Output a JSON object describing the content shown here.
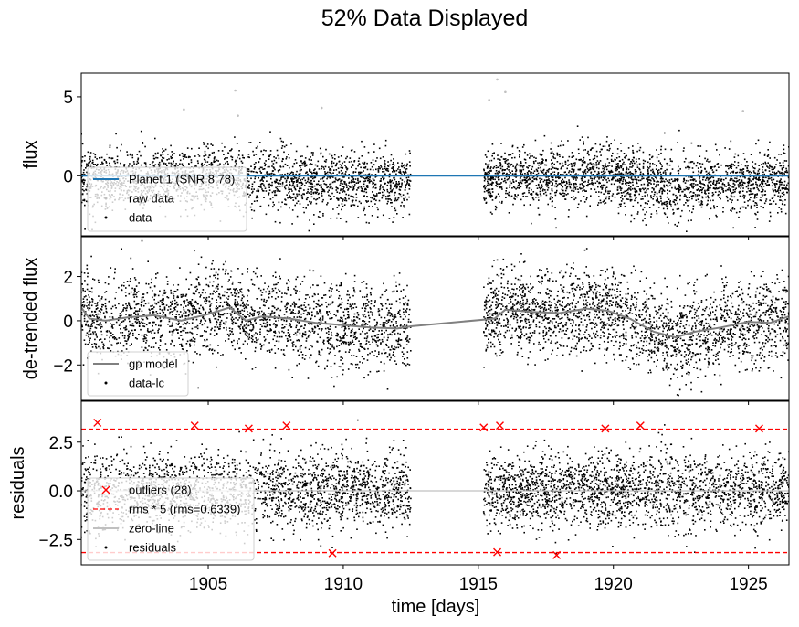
{
  "figure": {
    "title": "52% Data Displayed",
    "xlabel": "time [days]"
  },
  "chart_data": [
    {
      "type": "scatter",
      "ylabel": "flux",
      "xlim": [
        1900.3,
        1926.5
      ],
      "ylim": [
        -3.8,
        6.5
      ],
      "yticks": [
        0,
        5
      ],
      "show_xticklabels": false,
      "segments": [
        [
          1900.3,
          1912.5
        ],
        [
          1915.2,
          1926.5
        ]
      ],
      "series": [
        {
          "name": "Planet 1 (SNR 8.78)",
          "kind": "line",
          "color": "#1f77b4",
          "x": [
            1900.3,
            1926.5
          ],
          "y": [
            0,
            0
          ]
        },
        {
          "name": "raw data",
          "kind": "points",
          "color": "#c0c0c0",
          "x": [
            1904.1,
            1906.0,
            1906.1,
            1909.2,
            1915.4,
            1915.7,
            1916.0,
            1924.8
          ],
          "y": [
            4.2,
            5.4,
            3.8,
            4.3,
            4.8,
            6.1,
            5.3,
            4.1
          ]
        },
        {
          "name": "data",
          "kind": "points",
          "color": "#000000",
          "noise_sd": 0.95
        }
      ],
      "legend": {
        "loc": "lower left"
      }
    },
    {
      "type": "scatter",
      "ylabel": "de-trended flux",
      "xlim": [
        1900.3,
        1926.5
      ],
      "ylim": [
        -3.6,
        3.8
      ],
      "yticks": [
        -2,
        0,
        2
      ],
      "show_xticklabels": false,
      "series": [
        {
          "name": "gp model",
          "kind": "line",
          "color": "#808080",
          "x": [
            1900.3,
            1900.6,
            1901.2,
            1902.0,
            1903.0,
            1904.0,
            1905.0,
            1905.8,
            1906.4,
            1907.0,
            1908.0,
            1909.0,
            1910.0,
            1911.0,
            1912.0,
            1912.5,
            1915.2,
            1915.6,
            1916.0,
            1917.0,
            1918.0,
            1919.0,
            1919.8,
            1920.6,
            1921.5,
            1922.3,
            1923.0,
            1924.0,
            1925.0,
            1925.8,
            1926.5
          ],
          "y": [
            0.6,
            0.1,
            0.0,
            0.15,
            0.25,
            0.0,
            0.3,
            0.6,
            0.0,
            0.2,
            0.1,
            -0.1,
            -0.2,
            -0.3,
            -0.35,
            -0.25,
            0.05,
            0.1,
            0.5,
            0.4,
            0.35,
            0.55,
            0.45,
            0.1,
            -0.5,
            -0.75,
            -0.5,
            -0.3,
            -0.05,
            -0.1,
            0.2
          ]
        },
        {
          "name": "data-lc",
          "kind": "points",
          "color": "#000000",
          "noise_sd": 0.95
        }
      ],
      "legend": {
        "loc": "lower left"
      }
    },
    {
      "type": "scatter",
      "ylabel": "residuals",
      "xlim": [
        1900.3,
        1926.5
      ],
      "ylim": [
        -3.8,
        4.6
      ],
      "yticks": [
        -2.5,
        0.0,
        2.5
      ],
      "ytick_labels": [
        "−2.5",
        "0.0",
        "2.5"
      ],
      "xticks": [
        1905,
        1910,
        1915,
        1920,
        1925
      ],
      "series": [
        {
          "name": "outliers (28)",
          "kind": "marker-x",
          "color": "#ff0000",
          "x": [
            1900.9,
            1904.5,
            1906.5,
            1907.9,
            1909.6,
            1915.2,
            1915.7,
            1915.8,
            1917.9,
            1919.7,
            1921.0,
            1925.4
          ],
          "y": [
            3.5,
            3.35,
            3.2,
            3.35,
            -3.2,
            3.25,
            -3.15,
            3.35,
            -3.3,
            3.2,
            3.35,
            3.2
          ]
        },
        {
          "name": "rms * 5 (rms=0.6339)",
          "kind": "hline-dashed",
          "color": "#ff0000",
          "values": [
            3.17,
            -3.17
          ]
        },
        {
          "name": "zero-line",
          "kind": "hline",
          "color": "#c0c0c0",
          "values": [
            0
          ]
        },
        {
          "name": "residuals",
          "kind": "points",
          "color": "#000000",
          "noise_sd": 0.95
        }
      ],
      "legend": {
        "loc": "lower left"
      }
    }
  ]
}
